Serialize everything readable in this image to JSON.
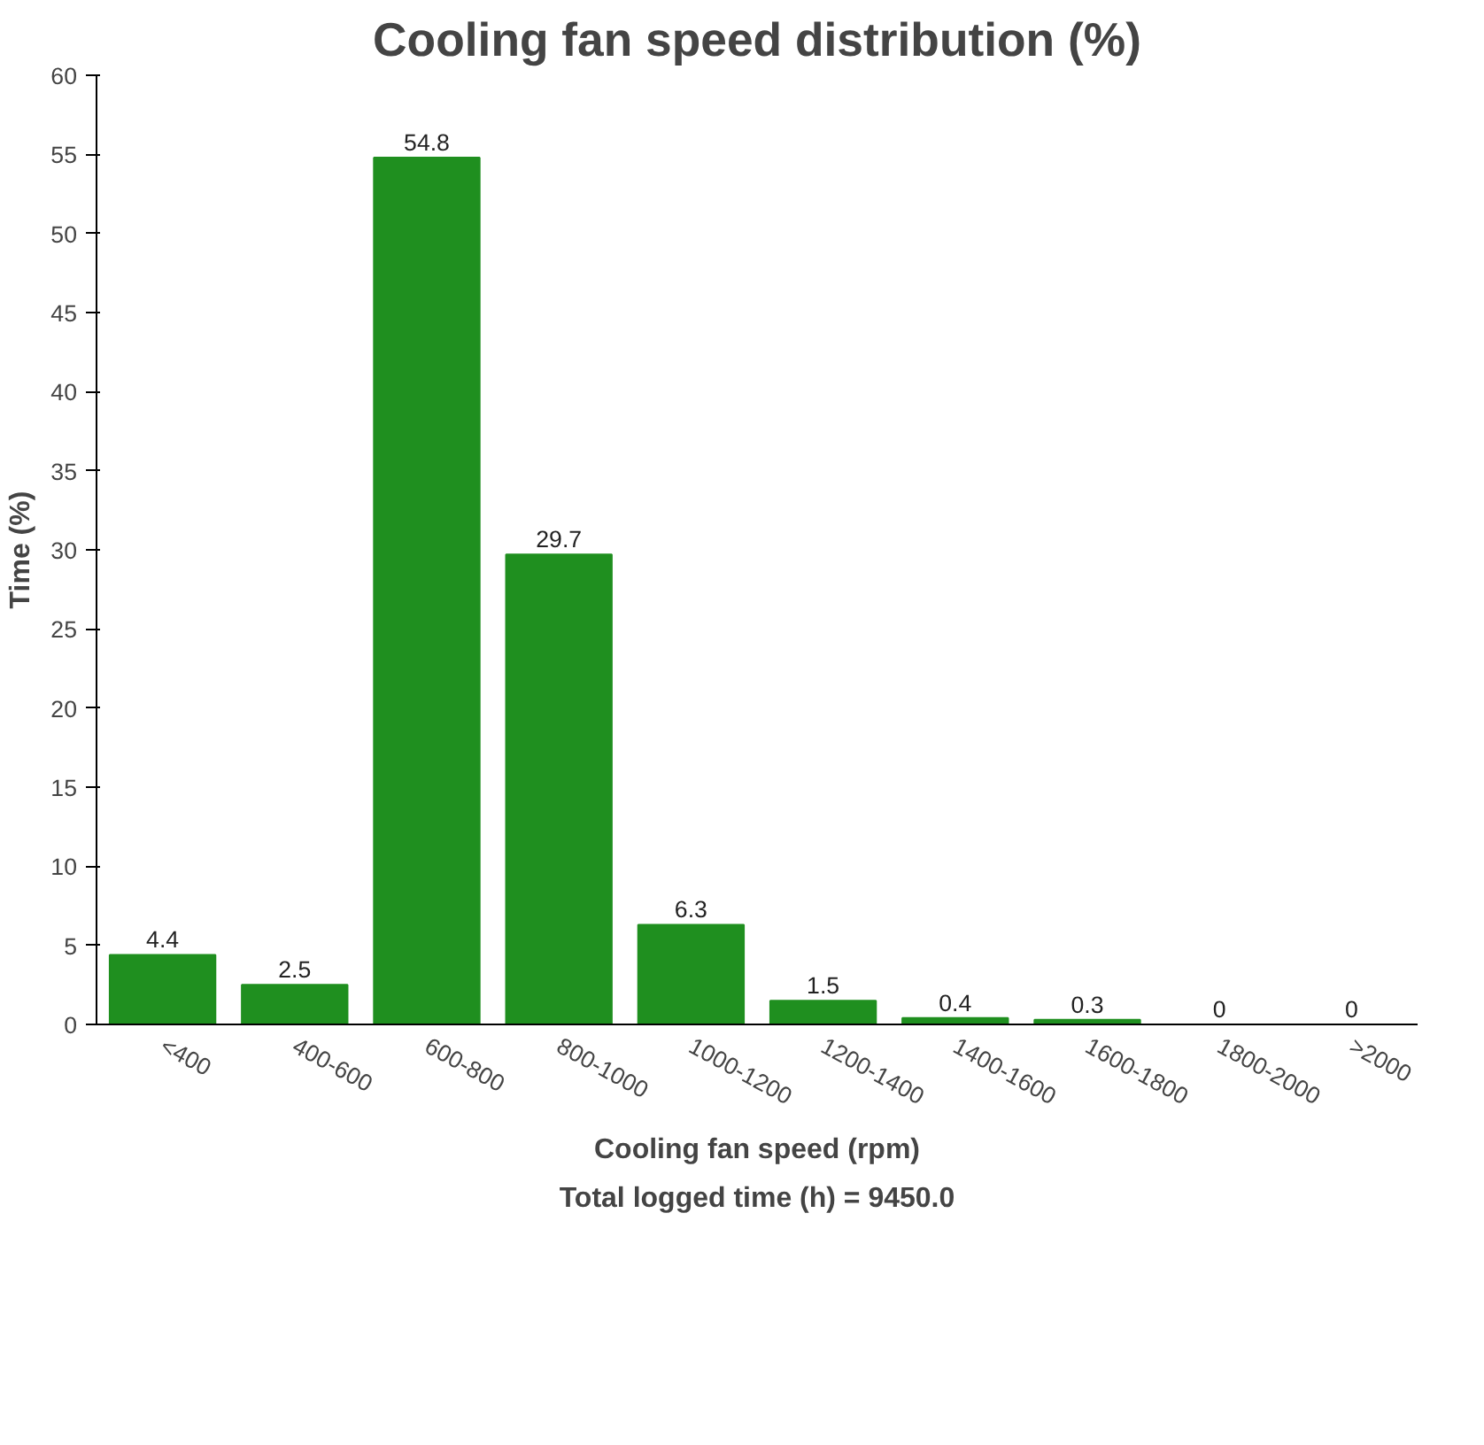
{
  "chart_data": {
    "type": "bar",
    "title": "Cooling fan speed distribution (%)",
    "xlabel": "Cooling fan speed (rpm)",
    "ylabel": "Time (%)",
    "annotations": [
      "Total logged time (h) = 9450.0"
    ],
    "categories": [
      "<400",
      "400-600",
      "600-800",
      "800-1000",
      "1000-1200",
      "1200-1400",
      "1400-1600",
      "1600-1800",
      "1800-2000",
      ">2000"
    ],
    "values": [
      4.4,
      2.5,
      54.8,
      29.7,
      6.3,
      1.5,
      0.4,
      0.3,
      0,
      0
    ],
    "color": "#1f8f1f",
    "ylim": [
      0,
      60
    ],
    "yticks": [
      0,
      5,
      10,
      15,
      20,
      25,
      30,
      35,
      40,
      45,
      50,
      55,
      60
    ],
    "grid": false,
    "data_labels": true
  }
}
